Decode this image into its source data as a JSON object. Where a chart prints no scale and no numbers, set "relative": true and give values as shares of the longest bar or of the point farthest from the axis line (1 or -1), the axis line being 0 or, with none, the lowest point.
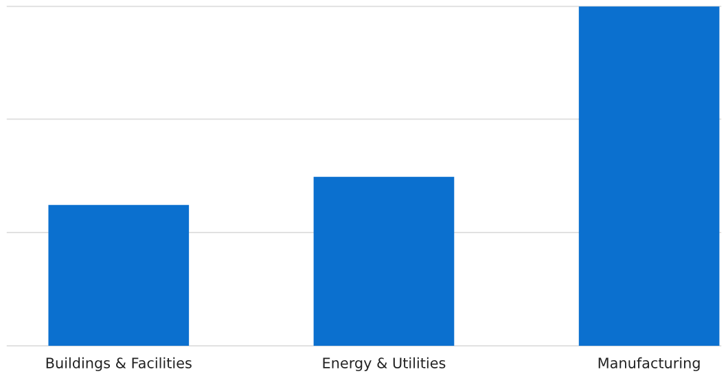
{
  "chart_data": {
    "type": "bar",
    "relative": true,
    "categories": [
      "Buildings & Facilities",
      "Energy & Utilities",
      "Manufacturing"
    ],
    "values": [
      0.415,
      0.498,
      1
    ],
    "color": "#0b70cf",
    "ref_lines": [
      {
        "axis": "y",
        "value": 0,
        "color": "#dddddd"
      },
      {
        "axis": "y",
        "value": 0.334,
        "color": "#dddddd"
      },
      {
        "axis": "y",
        "value": 0.668,
        "color": "#dddddd"
      },
      {
        "axis": "y",
        "value": 1,
        "color": "#dddddd"
      }
    ]
  }
}
